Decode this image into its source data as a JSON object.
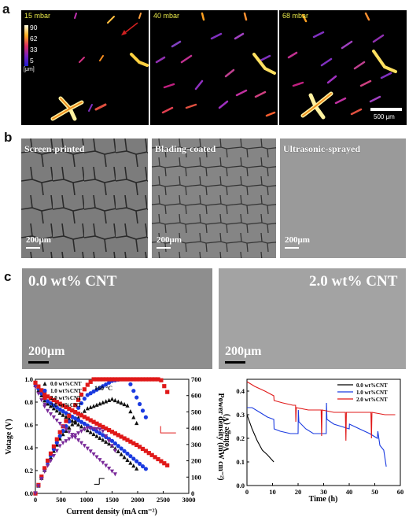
{
  "panel_a": {
    "label": "a",
    "tiles": [
      {
        "pressure": "15 mbar"
      },
      {
        "pressure": "40 mbar"
      },
      {
        "pressure": "68 mbar"
      }
    ],
    "colorbar": {
      "ticks": [
        "90",
        "62",
        "33",
        "5"
      ],
      "unit": "[μm]"
    },
    "scalebar": "500 μm"
  },
  "panel_b": {
    "label": "b",
    "images": [
      {
        "label": "Screen-printed"
      },
      {
        "label": "Blading-coated"
      },
      {
        "label": "Ultrasonic-sprayed"
      }
    ],
    "scalebar": "200μm"
  },
  "panel_c": {
    "label": "c",
    "images": [
      {
        "label": "0.0 wt% CNT"
      },
      {
        "label": "2.0 wt% CNT"
      }
    ],
    "scalebar": "200μm"
  },
  "chart_data": [
    {
      "type": "line",
      "xlabel": "Current density (mA cm⁻²)",
      "ylabel": "Votage (V)",
      "y2label": "Power density (mW cm⁻²)",
      "annotation": "160 °C",
      "xlim": [
        0,
        3000
      ],
      "ylim": [
        0.0,
        1.0
      ],
      "y2lim": [
        0,
        700
      ],
      "xticks": [
        "0",
        "500",
        "1000",
        "1500",
        "2000",
        "2500",
        "3000"
      ],
      "yticks": [
        "0.0",
        "0.2",
        "0.4",
        "0.6",
        "0.8",
        "1.0"
      ],
      "y2ticks": [
        "0",
        "100",
        "200",
        "300",
        "400",
        "500",
        "600",
        "700"
      ],
      "series": [
        {
          "name": "0.0 wt%CNT",
          "color": "#111111",
          "marker": "triangle-up",
          "max_x": 2000,
          "voltage": [
            [
              0,
              0.95
            ],
            [
              200,
              0.8
            ],
            [
              500,
              0.7
            ],
            [
              1000,
              0.56
            ],
            [
              1500,
              0.42
            ],
            [
              2000,
              0.21
            ]
          ],
          "power": [
            [
              0,
              0
            ],
            [
              200,
              160
            ],
            [
              500,
              350
            ],
            [
              1000,
              520
            ],
            [
              1500,
              580
            ],
            [
              1800,
              540
            ],
            [
              2000,
              420
            ]
          ]
        },
        {
          "name": "1.0 wt%CNT",
          "color": "#1a3ae0",
          "marker": "circle",
          "max_x": 2200,
          "voltage": [
            [
              0,
              0.96
            ],
            [
              200,
              0.82
            ],
            [
              500,
              0.73
            ],
            [
              1000,
              0.6
            ],
            [
              1500,
              0.46
            ],
            [
              2200,
              0.2
            ]
          ],
          "power": [
            [
              0,
              0
            ],
            [
              200,
              165
            ],
            [
              500,
              365
            ],
            [
              1000,
              600
            ],
            [
              1500,
              690
            ],
            [
              1800,
              710
            ],
            [
              2200,
              440
            ]
          ]
        },
        {
          "name": "2.0 wt%CNT",
          "color": "#e01818",
          "marker": "square",
          "max_x": 2600,
          "voltage": [
            [
              0,
              0.97
            ],
            [
              200,
              0.86
            ],
            [
              500,
              0.78
            ],
            [
              1000,
              0.66
            ],
            [
              1500,
              0.54
            ],
            [
              2000,
              0.42
            ],
            [
              2600,
              0.24
            ]
          ],
          "power": [
            [
              0,
              0
            ],
            [
              200,
              172
            ],
            [
              500,
              390
            ],
            [
              1000,
              660
            ],
            [
              1500,
              810
            ],
            [
              1800,
              850
            ],
            [
              2000,
              840
            ],
            [
              2300,
              790
            ],
            [
              2600,
              610
            ]
          ]
        },
        {
          "name": "3.0 wt%CNT",
          "color": "#7a2a9a",
          "marker": "triangle-down",
          "max_x": 1600,
          "voltage": [
            [
              0,
              0.93
            ],
            [
              200,
              0.74
            ],
            [
              500,
              0.6
            ],
            [
              1000,
              0.4
            ],
            [
              1600,
              0.15
            ]
          ],
          "power": [
            [
              0,
              0
            ],
            [
              200,
              148
            ],
            [
              500,
              300
            ],
            [
              1000,
              400
            ],
            [
              1300,
              390
            ],
            [
              1600,
              240
            ]
          ]
        }
      ]
    },
    {
      "type": "line",
      "xlabel": "Time (h)",
      "ylabel": "Voltage (V)",
      "xlim": [
        0,
        60
      ],
      "ylim": [
        0.0,
        0.45
      ],
      "xticks": [
        "0",
        "10",
        "20",
        "30",
        "40",
        "50",
        "60"
      ],
      "yticks": [
        "0.0",
        "0.1",
        "0.2",
        "0.3",
        "0.4"
      ],
      "series": [
        {
          "name": "0.0 wt%CNT",
          "color": "#000000",
          "points": [
            [
              0,
              0.3
            ],
            [
              2,
              0.24
            ],
            [
              4,
              0.19
            ],
            [
              6,
              0.15
            ],
            [
              8,
              0.13
            ],
            [
              10.5,
              0.1
            ]
          ]
        },
        {
          "name": "1.0 wt%CNT",
          "color": "#1a3ae0",
          "points": [
            [
              0,
              0.33
            ],
            [
              2,
              0.33
            ],
            [
              5,
              0.31
            ],
            [
              8,
              0.29
            ],
            [
              10.5,
              0.28
            ],
            [
              10.6,
              0.24
            ],
            [
              13,
              0.23
            ],
            [
              17,
              0.22
            ],
            [
              20,
              0.22
            ],
            [
              20.1,
              0.32
            ],
            [
              20.3,
              0.27
            ],
            [
              23,
              0.24
            ],
            [
              26,
              0.22
            ],
            [
              31,
              0.22
            ],
            [
              31.1,
              0.35
            ],
            [
              31.3,
              0.28
            ],
            [
              34,
              0.26
            ],
            [
              37,
              0.25
            ],
            [
              40,
              0.24
            ],
            [
              40.1,
              0.26
            ],
            [
              44,
              0.24
            ],
            [
              48,
              0.22
            ],
            [
              51,
              0.2
            ],
            [
              51.2,
              0.23
            ],
            [
              52,
              0.17
            ],
            [
              53.5,
              0.15
            ],
            [
              54.5,
              0.08
            ]
          ]
        },
        {
          "name": "2.0 wt%CNT",
          "color": "#e01818",
          "points": [
            [
              0,
              0.44
            ],
            [
              3,
              0.42
            ],
            [
              7,
              0.4
            ],
            [
              10.5,
              0.38
            ],
            [
              10.6,
              0.36
            ],
            [
              14,
              0.35
            ],
            [
              18,
              0.34
            ],
            [
              19,
              0.34
            ],
            [
              19.1,
              0.27
            ],
            [
              19.3,
              0.33
            ],
            [
              24,
              0.32
            ],
            [
              29,
              0.32
            ],
            [
              29.2,
              0.21
            ],
            [
              29.4,
              0.32
            ],
            [
              34,
              0.31
            ],
            [
              38.5,
              0.31
            ],
            [
              38.7,
              0.19
            ],
            [
              38.9,
              0.31
            ],
            [
              44,
              0.31
            ],
            [
              48.5,
              0.31
            ],
            [
              48.7,
              0.2
            ],
            [
              48.9,
              0.31
            ],
            [
              54,
              0.3
            ],
            [
              58,
              0.3
            ]
          ]
        }
      ]
    }
  ]
}
